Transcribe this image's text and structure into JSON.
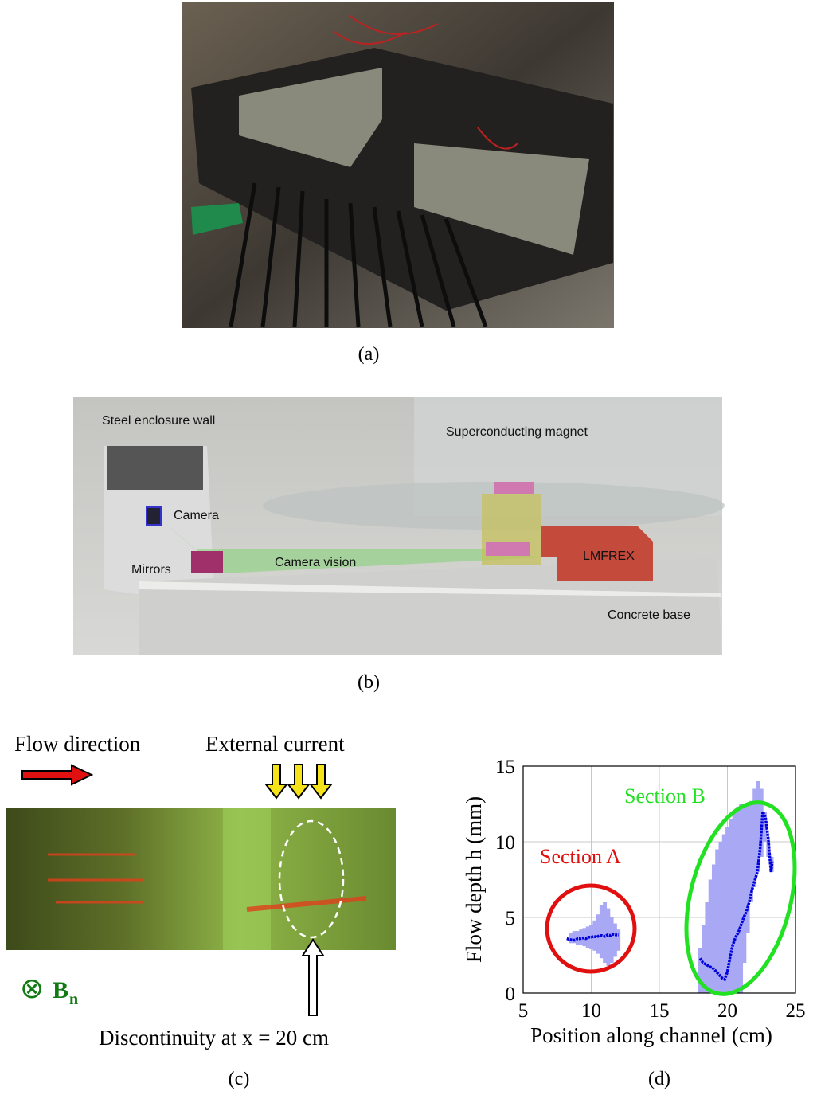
{
  "captions": [
    "(a)",
    "(b)",
    "(c)",
    "(d)"
  ],
  "panel_b": {
    "labels": [
      "Steel enclosure wall",
      "Superconducting magnet",
      "Camera",
      "Mirrors",
      "Camera vision",
      "LMFREX",
      "Concrete base"
    ]
  },
  "panel_c": {
    "flow": "Flow direction",
    "current": "External current",
    "discontinuity": "Discontinuity at x = 20 cm",
    "field_symbol": "⊗",
    "field": "B",
    "field_sub": "n"
  },
  "chart_data": {
    "type": "line",
    "xlabel": "Position along channel (cm)",
    "ylabel": "Flow depth h (mm)",
    "annotations": [
      "Section A",
      "Section B"
    ],
    "xlim": [
      5,
      25
    ],
    "xticks": [
      5,
      10,
      15,
      20,
      25
    ],
    "ylim": [
      0,
      15
    ],
    "yticks": [
      0,
      5,
      10,
      15
    ],
    "grid": true,
    "band_color": "#a8a8f4",
    "series": [
      {
        "color": "#0000dd",
        "x": [
          8.2,
          8.4,
          8.6,
          8.8,
          9,
          9.2,
          9.4,
          9.6,
          9.8,
          10,
          10.2,
          10.4,
          10.6,
          10.8,
          11,
          11.2,
          11.4,
          11.6,
          11.8,
          12
        ],
        "values": [
          3.6,
          3.55,
          3.5,
          3.5,
          3.6,
          3.6,
          3.65,
          3.6,
          3.7,
          3.7,
          3.75,
          3.7,
          3.8,
          3.8,
          3.75,
          3.85,
          3.8,
          3.9,
          3.85,
          3.85
        ],
        "band_x": [
          8.5,
          8.75,
          9,
          9.25,
          9.5,
          9.75,
          10,
          10.25,
          10.5,
          10.75,
          11,
          11.25,
          11.5,
          11.75,
          12
        ],
        "band_lower": [
          3.3,
          3.3,
          3.2,
          3.2,
          3.1,
          3,
          2.9,
          2.8,
          2.6,
          2.3,
          2,
          1.8,
          2,
          2.4,
          2.8
        ],
        "band_upper": [
          4,
          4.1,
          4.1,
          4.2,
          4.3,
          4.4,
          4.5,
          4.8,
          5.2,
          5.8,
          6,
          5.6,
          5,
          4.6,
          4.2
        ]
      },
      {
        "color": "#0000dd",
        "x": [
          18,
          18.2,
          18.4,
          18.6,
          18.8,
          19,
          19.2,
          19.4,
          19.6,
          19.8,
          20,
          20.2,
          20.4,
          20.6,
          20.8,
          21,
          21.2,
          21.4,
          21.6,
          21.8,
          22,
          22.2,
          22.4,
          22.6,
          22.8,
          23,
          23.2,
          23.3
        ],
        "values": [
          2.3,
          2,
          1.9,
          1.8,
          1.7,
          1.6,
          1.4,
          1.2,
          1,
          0.9,
          1.4,
          2.4,
          3.2,
          3.7,
          4,
          4.5,
          5,
          5.4,
          6,
          6.8,
          7.4,
          8,
          9.5,
          12,
          11.6,
          10.2,
          8,
          8.7
        ],
        "band_x": [
          18,
          18.25,
          18.5,
          18.75,
          19,
          19.25,
          19.5,
          19.75,
          20,
          20.25,
          20.5,
          20.75,
          21,
          21.25,
          21.5,
          21.75,
          22,
          22.25,
          22.5,
          22.75,
          23,
          23.25
        ],
        "band_lower": [
          0,
          0,
          0,
          0,
          0,
          0,
          0,
          0,
          0,
          0,
          0,
          0,
          0,
          2,
          4,
          6,
          7,
          8,
          9,
          10,
          9,
          8
        ],
        "band_upper": [
          3,
          4.5,
          6,
          7.5,
          8.5,
          9.5,
          10,
          10.5,
          11,
          11.5,
          12,
          12.3,
          12.5,
          12.5,
          12.5,
          12.7,
          13.5,
          14,
          13.5,
          12,
          10,
          9
        ]
      }
    ]
  }
}
